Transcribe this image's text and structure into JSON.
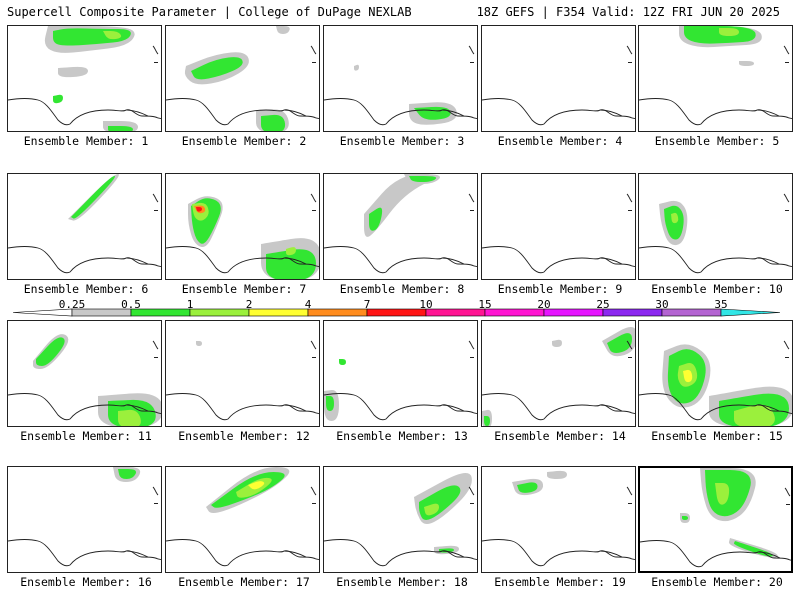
{
  "header": {
    "left_title": "Supercell Composite Parameter | College of DuPage NEXLAB",
    "right_title": "18Z GEFS | F354 Valid: 12Z FRI JUN 20 2025"
  },
  "member_label_prefix": "Ensemble Member: ",
  "members": [
    {
      "number": "1",
      "caption": "Ensemble Member: 1"
    },
    {
      "number": "2",
      "caption": "Ensemble Member: 2"
    },
    {
      "number": "3",
      "caption": "Ensemble Member: 3"
    },
    {
      "number": "4",
      "caption": "Ensemble Member: 4"
    },
    {
      "number": "5",
      "caption": "Ensemble Member: 5"
    },
    {
      "number": "6",
      "caption": "Ensemble Member: 6"
    },
    {
      "number": "7",
      "caption": "Ensemble Member: 7"
    },
    {
      "number": "8",
      "caption": "Ensemble Member: 8"
    },
    {
      "number": "9",
      "caption": "Ensemble Member: 9"
    },
    {
      "number": "10",
      "caption": "Ensemble Member: 10"
    },
    {
      "number": "11",
      "caption": "Ensemble Member: 11"
    },
    {
      "number": "12",
      "caption": "Ensemble Member: 12"
    },
    {
      "number": "13",
      "caption": "Ensemble Member: 13"
    },
    {
      "number": "14",
      "caption": "Ensemble Member: 14"
    },
    {
      "number": "15",
      "caption": "Ensemble Member: 15"
    },
    {
      "number": "16",
      "caption": "Ensemble Member: 16"
    },
    {
      "number": "17",
      "caption": "Ensemble Member: 17"
    },
    {
      "number": "18",
      "caption": "Ensemble Member: 18"
    },
    {
      "number": "19",
      "caption": "Ensemble Member: 19"
    },
    {
      "number": "20",
      "caption": "Ensemble Member: 20",
      "selected": true
    }
  ],
  "colorbar": {
    "thresholds": [
      "0.25",
      "0.5",
      "1",
      "2",
      "4",
      "7",
      "10",
      "15",
      "20",
      "25",
      "30",
      "35"
    ],
    "colors": [
      "#ffffff",
      "#c8c8c8",
      "#32e632",
      "#9bf03c",
      "#ffff32",
      "#ff8c1e",
      "#ff1414",
      "#ff1493",
      "#ff14d2",
      "#e614ff",
      "#8c28f0",
      "#b464d2",
      "#32e6e6"
    ]
  },
  "fill_colors": {
    "gray": "#c8c8c8",
    "green": "#32e632",
    "lime": "#9bf03c",
    "yellow": "#ffff32",
    "orange": "#ff8c1e",
    "red": "#ff1414"
  }
}
